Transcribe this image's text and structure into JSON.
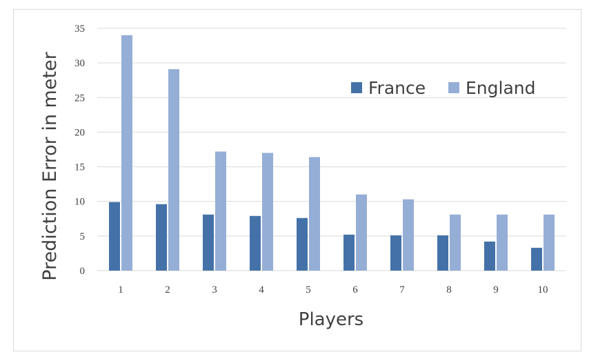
{
  "chart_data": {
    "type": "bar",
    "categories": [
      "1",
      "2",
      "3",
      "4",
      "5",
      "6",
      "7",
      "8",
      "9",
      "10"
    ],
    "series": [
      {
        "name": "France",
        "color": "#4472a8",
        "values": [
          9.9,
          9.6,
          8.1,
          7.9,
          7.6,
          5.2,
          5.1,
          5.1,
          4.2,
          3.3
        ]
      },
      {
        "name": "England",
        "color": "#95aed6",
        "values": [
          34.0,
          29.1,
          17.2,
          17.0,
          16.4,
          11.0,
          10.3,
          8.1,
          8.1,
          8.1
        ]
      }
    ],
    "xlabel": "Players",
    "ylabel": "Prediction Error in meter",
    "ylim": [
      0,
      35
    ],
    "yticks": [
      "0",
      "5",
      "10",
      "15",
      "20",
      "25",
      "30",
      "35"
    ],
    "grid": true,
    "legend_position": "top-right"
  }
}
